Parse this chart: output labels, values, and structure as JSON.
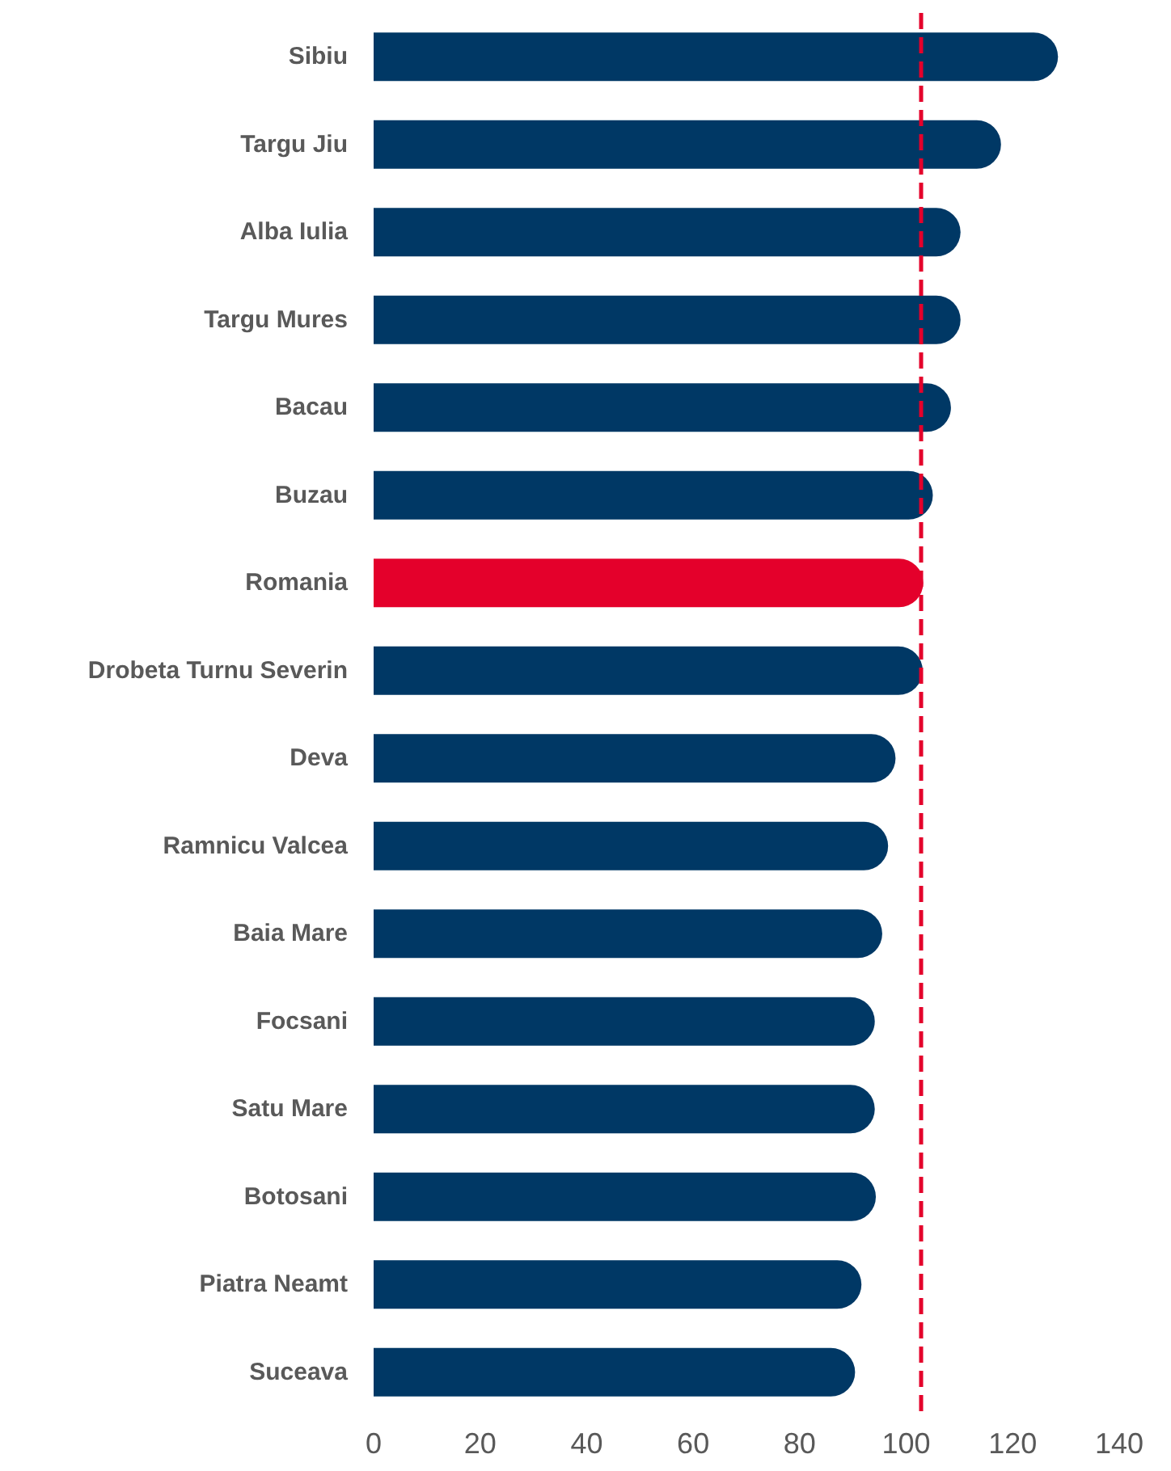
{
  "chart_data": {
    "type": "bar",
    "orientation": "horizontal",
    "categories": [
      "Sibiu",
      "Targu Jiu",
      "Alba Iulia",
      "Targu Mures",
      "Bacau",
      "Buzau",
      "Romania",
      "Drobeta Turnu Severin",
      "Deva",
      "Ramnicu Valcea",
      "Baia Mare",
      "Focsani",
      "Satu Mare",
      "Botosani",
      "Piatra Neamt",
      "Suceava"
    ],
    "values": [
      128.5,
      117.8,
      110.2,
      110.2,
      108.4,
      105,
      103.2,
      103.1,
      98,
      96.6,
      95.5,
      94.1,
      94.1,
      94.3,
      91.6,
      90.4
    ],
    "colors": [
      "#003865",
      "#003865",
      "#003865",
      "#003865",
      "#003865",
      "#003865",
      "#e4002b",
      "#003865",
      "#003865",
      "#003865",
      "#003865",
      "#003865",
      "#003865",
      "#003865",
      "#003865",
      "#003865"
    ],
    "xlim": [
      0,
      140
    ],
    "xticks": [
      0,
      20,
      40,
      60,
      80,
      100,
      120,
      140
    ],
    "grid": false,
    "ref_lines": [
      {
        "axis": "x",
        "value": 102.7,
        "color": "#e4002b",
        "line_style": "dashed"
      }
    ]
  }
}
